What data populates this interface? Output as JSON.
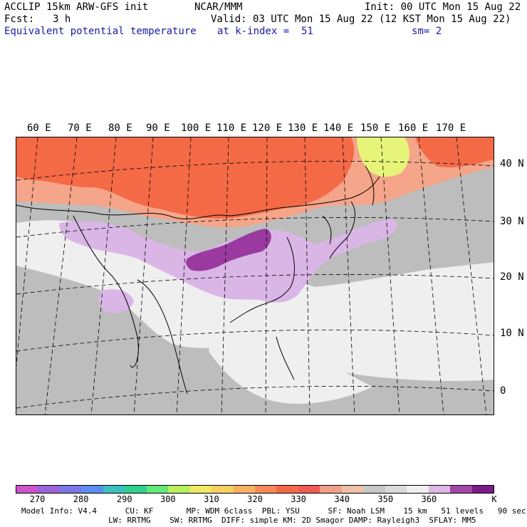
{
  "header": {
    "model": "ACCLIP 15km ARW-GFS init",
    "org": "NCAR/MMM",
    "init": "Init: 00 UTC Mon 15 Aug 22",
    "fcst_label": "Fcst:",
    "fcst_value": "3 h",
    "valid": "Valid: 03 UTC Mon 15 Aug 22 (12 KST Mon 15 Aug 22)",
    "field": "Equivalent potential temperature",
    "level": "at k-index =  51",
    "smooth": "sm= 2"
  },
  "map": {
    "lon_labels": [
      "60 E",
      "70 E",
      "80 E",
      "90 E",
      "100 E",
      "110 E",
      "120 E",
      "130 E",
      "140 E",
      "150 E",
      "160 E",
      "170 E"
    ],
    "lat_labels": [
      "40 N",
      "30 N",
      "20 N",
      "10 N",
      "0"
    ],
    "colors": {
      "background": "#bdbdbd",
      "warm_north": "#f46a46",
      "warm_edge": "#f5a58a",
      "yellow_patch": "#e6f57a",
      "light": "#efefef",
      "lavender": "#d9b6e6",
      "purple": "#9a3aa0"
    }
  },
  "colorbar": {
    "colors": [
      "#cc55cc",
      "#9a64d8",
      "#7a78e6",
      "#5c8ef2",
      "#3cc0c0",
      "#30d090",
      "#62ea76",
      "#b8f060",
      "#f0ea62",
      "#f8d062",
      "#f8b062",
      "#f88a5a",
      "#f46a46",
      "#f05a52",
      "#f0a088",
      "#f0c0a8",
      "#c8c8c8",
      "#dadada",
      "#efefef",
      "#ddb8e6",
      "#a446a8",
      "#7a1a8a"
    ],
    "labels": [
      "270",
      "280",
      "290",
      "300",
      "310",
      "320",
      "330",
      "340",
      "350",
      "360"
    ],
    "unit": "K"
  },
  "footer": {
    "line1": "Model Info: V4.4      CU: KF       MP: WDM 6class  PBL: YSU      SF: Noah LSM    15 km   51 levels   90 sec",
    "line2": "LW: RRTMG    SW: RRTMG  DIFF: simple KM: 2D Smagor DAMP: Rayleigh3  SFLAY: MM5"
  }
}
